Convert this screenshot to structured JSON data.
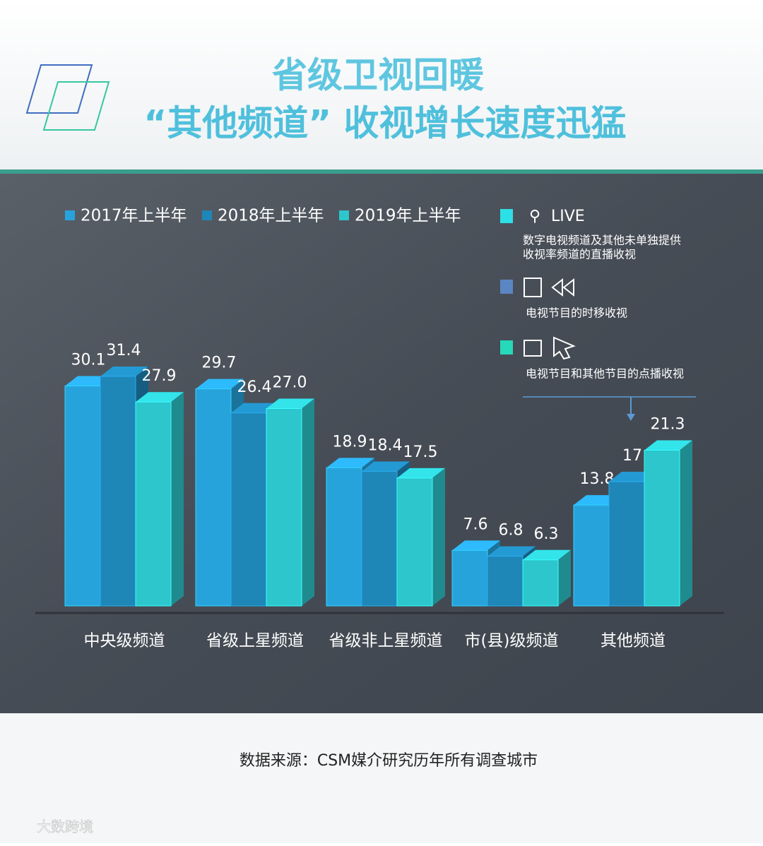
{
  "chart_data": {
    "type": "bar",
    "title": [
      "省级卫视回暖",
      "“其他频道” 收视增长速度迅猛"
    ],
    "categories": [
      "中央级频道",
      "省级上星频道",
      "省级非上星频道",
      "市(县)级频道",
      "其他频道"
    ],
    "series": [
      {
        "name": "2017年上半年",
        "color": "#27a3dc",
        "values": [
          30.1,
          29.7,
          18.9,
          7.6,
          13.8
        ]
      },
      {
        "name": "2018年上半年",
        "color": "#1f86b8",
        "values": [
          31.4,
          26.4,
          18.4,
          6.8,
          17
        ]
      },
      {
        "name": "2019年上半年",
        "color": "#2cc6cc",
        "values": [
          27.9,
          27.0,
          17.5,
          6.3,
          21.3
        ],
        "value_labels": [
          "27.9",
          "27.0",
          "17.5",
          "6.3",
          "21.3"
        ]
      }
    ],
    "notes": [
      {
        "label": "LIVE",
        "text": [
          "数字电视频道及其他未单独提供",
          "收视率频道的直播收视"
        ],
        "color": "#2de0e8"
      },
      {
        "text": [
          "电视节目的时移收视"
        ],
        "color": "#5b86c4"
      },
      {
        "text": [
          "电视节目和其他节目的点播收视"
        ],
        "color": "#26d9b9"
      }
    ],
    "source": "数据来源：CSM媒介研究历年所有调查城市",
    "watermark": "大数跨境"
  }
}
